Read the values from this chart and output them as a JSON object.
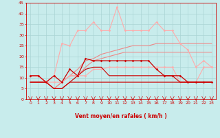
{
  "xlabel": "Vent moyen/en rafales ( km/h )",
  "xlim": [
    -0.5,
    23.5
  ],
  "ylim": [
    0,
    45
  ],
  "yticks": [
    0,
    5,
    10,
    15,
    20,
    25,
    30,
    35,
    40,
    45
  ],
  "xticks": [
    0,
    1,
    2,
    3,
    4,
    5,
    6,
    7,
    8,
    9,
    10,
    11,
    12,
    13,
    14,
    15,
    16,
    17,
    18,
    19,
    20,
    21,
    22,
    23
  ],
  "background_color": "#c8ecec",
  "grid_color": "#aad4d4",
  "series": [
    {
      "x": [
        0,
        1,
        2,
        3,
        4,
        5,
        6,
        7,
        8,
        9,
        10,
        11,
        12,
        13,
        14,
        15,
        16,
        17,
        18,
        19,
        20,
        21,
        22,
        23
      ],
      "y": [
        11,
        11,
        8,
        11,
        26,
        25,
        32,
        32,
        36,
        32,
        32,
        43,
        32,
        32,
        32,
        32,
        36,
        32,
        32,
        26,
        23,
        15,
        18,
        15
      ],
      "color": "#ffaaaa",
      "lw": 0.8,
      "marker": "D",
      "ms": 1.8,
      "zorder": 4
    },
    {
      "x": [
        0,
        1,
        2,
        3,
        4,
        5,
        6,
        7,
        8,
        9,
        10,
        11,
        12,
        13,
        14,
        15,
        16,
        17,
        18,
        19,
        20,
        21,
        22,
        23
      ],
      "y": [
        11,
        11,
        8,
        8,
        8,
        11,
        11,
        11,
        14,
        14,
        15,
        15,
        15,
        15,
        15,
        15,
        15,
        15,
        15,
        8,
        8,
        8,
        15,
        15
      ],
      "color": "#ffaaaa",
      "lw": 0.8,
      "marker": "D",
      "ms": 1.8,
      "zorder": 4
    },
    {
      "x": [
        0,
        1,
        2,
        3,
        4,
        5,
        6,
        7,
        8,
        9,
        10,
        11,
        12,
        13,
        14,
        15,
        16,
        17,
        18,
        19,
        20,
        21,
        22,
        23
      ],
      "y": [
        8,
        8,
        8,
        5,
        8,
        11,
        14,
        18,
        19,
        21,
        22,
        23,
        24,
        25,
        25,
        25,
        26,
        26,
        26,
        26,
        26,
        26,
        26,
        26
      ],
      "color": "#ee8888",
      "lw": 0.8,
      "marker": null,
      "ms": 0,
      "zorder": 3
    },
    {
      "x": [
        0,
        1,
        2,
        3,
        4,
        5,
        6,
        7,
        8,
        9,
        10,
        11,
        12,
        13,
        14,
        15,
        16,
        17,
        18,
        19,
        20,
        21,
        22,
        23
      ],
      "y": [
        11,
        11,
        8,
        5,
        8,
        11,
        11,
        15,
        18,
        19,
        20,
        21,
        22,
        22,
        22,
        22,
        22,
        22,
        22,
        22,
        22,
        22,
        22,
        22
      ],
      "color": "#ee8888",
      "lw": 0.8,
      "marker": null,
      "ms": 0,
      "zorder": 3
    },
    {
      "x": [
        0,
        1,
        2,
        3,
        4,
        5,
        6,
        7,
        8,
        9,
        10,
        11,
        12,
        13,
        14,
        15,
        16,
        17,
        18,
        19,
        20,
        21,
        22,
        23
      ],
      "y": [
        11,
        11,
        8,
        11,
        8,
        14,
        11,
        19,
        18,
        18,
        18,
        18,
        18,
        18,
        18,
        18,
        14,
        11,
        11,
        11,
        8,
        8,
        8,
        8
      ],
      "color": "#cc0000",
      "lw": 0.9,
      "marker": "D",
      "ms": 1.8,
      "zorder": 5
    },
    {
      "x": [
        0,
        1,
        2,
        3,
        4,
        5,
        6,
        7,
        8,
        9,
        10,
        11,
        12,
        13,
        14,
        15,
        16,
        17,
        18,
        19,
        20,
        21,
        22,
        23
      ],
      "y": [
        8,
        8,
        8,
        5,
        5,
        8,
        11,
        14,
        15,
        15,
        11,
        11,
        11,
        11,
        11,
        11,
        11,
        11,
        11,
        8,
        8,
        8,
        8,
        8
      ],
      "color": "#cc0000",
      "lw": 0.8,
      "marker": null,
      "ms": 0,
      "zorder": 4
    },
    {
      "x": [
        0,
        1,
        2,
        3,
        4,
        5,
        6,
        7,
        8,
        9,
        10,
        11,
        12,
        13,
        14,
        15,
        16,
        17,
        18,
        19,
        20,
        21,
        22,
        23
      ],
      "y": [
        8,
        8,
        8,
        5,
        5,
        8,
        8,
        8,
        8,
        8,
        8,
        8,
        8,
        8,
        8,
        8,
        8,
        8,
        8,
        8,
        8,
        8,
        8,
        8
      ],
      "color": "#cc0000",
      "lw": 0.8,
      "marker": null,
      "ms": 0,
      "zorder": 4
    }
  ],
  "font_color": "#cc0000",
  "tick_fontsize": 4.5,
  "label_fontsize": 5.5
}
